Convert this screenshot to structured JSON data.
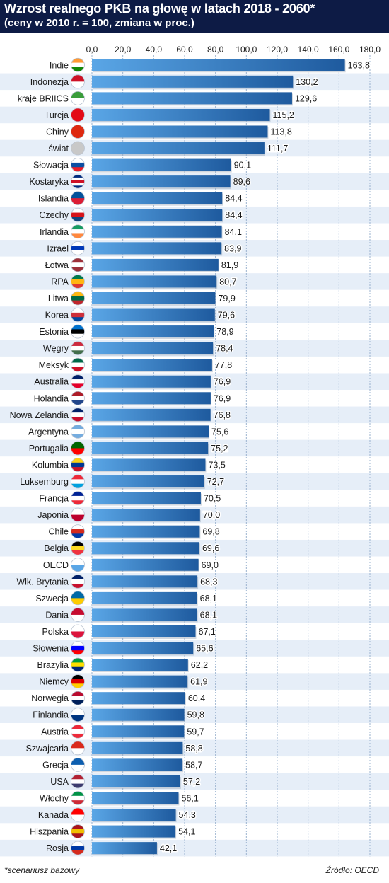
{
  "header": {
    "title": "Wzrost realnego PKB na głowę w latach 2018 - 2060*",
    "subtitle": "(ceny w 2010 r. = 100,  zmiana w proc.)"
  },
  "footer": {
    "footnote": "*scenariusz bazowy",
    "source": "Źródło: OECD"
  },
  "colors": {
    "header_bg": "#0d1b45",
    "bar_light": "#5aa6e6",
    "bar_dark": "#1e5a9e",
    "row_stripe": "#e6eef8",
    "grid": "#9bb3cf"
  },
  "chart_data": {
    "type": "bar",
    "orientation": "horizontal",
    "xlim": [
      0,
      180
    ],
    "xticks": [
      0,
      20,
      40,
      60,
      80,
      100,
      120,
      140,
      160,
      180
    ],
    "xtick_labels": [
      "0,0",
      "20,0",
      "40,0",
      "60,0",
      "80,0",
      "100,0",
      "120,0",
      "140,0",
      "160,0",
      "180,0"
    ],
    "grid": true,
    "categories": [
      "Indie",
      "Indonezja",
      "kraje BRIICS",
      "Turcja",
      "Chiny",
      "świat",
      "Słowacja",
      "Kostaryka",
      "Islandia",
      "Czechy",
      "Irlandia",
      "Izrael",
      "Łotwa",
      "RPA",
      "Litwa",
      "Korea",
      "Estonia",
      "Węgry",
      "Meksyk",
      "Australia",
      "Holandia",
      "Nowa Zelandia",
      "Argentyna",
      "Portugalia",
      "Kolumbia",
      "Luksemburg",
      "Francja",
      "Japonia",
      "Chile",
      "Belgia",
      "OECD",
      "Wlk. Brytania",
      "Szwecja",
      "Dania",
      "Polska",
      "Słowenia",
      "Brazylia",
      "Niemcy",
      "Norwegia",
      "Finlandia",
      "Austria",
      "Szwajcaria",
      "Grecja",
      "USA",
      "Włochy",
      "Kanada",
      "Hiszpania",
      "Rosja"
    ],
    "values": [
      163.8,
      130.2,
      129.6,
      115.2,
      113.8,
      111.7,
      90.1,
      89.6,
      84.4,
      84.4,
      84.1,
      83.9,
      81.9,
      80.7,
      79.9,
      79.6,
      78.9,
      78.4,
      77.8,
      76.9,
      76.9,
      76.8,
      75.6,
      75.2,
      73.5,
      72.7,
      70.5,
      70.0,
      69.8,
      69.6,
      69.0,
      68.3,
      68.1,
      68.1,
      67.1,
      65.6,
      62.2,
      61.9,
      60.4,
      59.8,
      59.7,
      58.8,
      58.7,
      57.2,
      56.1,
      54.3,
      54.1,
      42.1
    ],
    "value_labels": [
      "163,8",
      "130,2",
      "129,6",
      "115,2",
      "113,8",
      "111,7",
      "90,1",
      "89,6",
      "84,4",
      "84,4",
      "84,1",
      "83,9",
      "81,9",
      "80,7",
      "79,9",
      "79,6",
      "78,9",
      "78,4",
      "77,8",
      "76,9",
      "76,9",
      "76,8",
      "75,6",
      "75,2",
      "73,5",
      "72,7",
      "70,5",
      "70,0",
      "69,8",
      "69,6",
      "69,0",
      "68,3",
      "68,1",
      "68,1",
      "67,1",
      "65,6",
      "62,2",
      "61,9",
      "60,4",
      "59,8",
      "59,7",
      "58,8",
      "58,7",
      "57,2",
      "56,1",
      "54,3",
      "54,1",
      "42,1"
    ],
    "flags": [
      [
        "#ff9933",
        "#ffffff",
        "#138808"
      ],
      [
        "#ce1126",
        "#ffffff"
      ],
      [
        "#3a9d3a",
        "#ffffff"
      ],
      [
        "#e30a17"
      ],
      [
        "#de2910"
      ],
      [
        "#c8c8c8"
      ],
      [
        "#ffffff",
        "#0b4ea2",
        "#ee1c25"
      ],
      [
        "#002b7f",
        "#ffffff",
        "#ce1126",
        "#ffffff",
        "#002b7f"
      ],
      [
        "#02529c",
        "#dc1e35"
      ],
      [
        "#ffffff",
        "#d7141a",
        "#11457e"
      ],
      [
        "#169b62",
        "#ffffff",
        "#ff883e"
      ],
      [
        "#ffffff",
        "#0038b8",
        "#ffffff"
      ],
      [
        "#9e3039",
        "#ffffff",
        "#9e3039"
      ],
      [
        "#007a4d",
        "#ffb612",
        "#de3831"
      ],
      [
        "#fdb913",
        "#006a44",
        "#c1272d"
      ],
      [
        "#ffffff",
        "#cd2e3a",
        "#0047a0"
      ],
      [
        "#0072ce",
        "#000000",
        "#ffffff"
      ],
      [
        "#cd2a3e",
        "#ffffff",
        "#436f4d"
      ],
      [
        "#006847",
        "#ffffff",
        "#ce1126"
      ],
      [
        "#012169",
        "#ffffff",
        "#e4002b"
      ],
      [
        "#ae1c28",
        "#ffffff",
        "#21468b"
      ],
      [
        "#012169",
        "#ffffff",
        "#c8102e"
      ],
      [
        "#74acdf",
        "#ffffff",
        "#74acdf"
      ],
      [
        "#006600",
        "#ff0000"
      ],
      [
        "#fcd116",
        "#003893",
        "#ce1126"
      ],
      [
        "#ed2939",
        "#ffffff",
        "#00a1de"
      ],
      [
        "#002395",
        "#ffffff",
        "#ed2939"
      ],
      [
        "#ffffff",
        "#bc002d"
      ],
      [
        "#ffffff",
        "#d52b1e",
        "#0039a6"
      ],
      [
        "#000000",
        "#fdda24",
        "#ef3340"
      ],
      [
        "#ffffff",
        "#5aa6e6"
      ],
      [
        "#012169",
        "#ffffff",
        "#c8102e"
      ],
      [
        "#006aa7",
        "#fecc00"
      ],
      [
        "#c60c30",
        "#ffffff"
      ],
      [
        "#ffffff",
        "#dc143c"
      ],
      [
        "#ffffff",
        "#0000ff",
        "#ff0000"
      ],
      [
        "#009c3b",
        "#ffdf00",
        "#002776"
      ],
      [
        "#000000",
        "#dd0000",
        "#ffce00"
      ],
      [
        "#ba0c2f",
        "#ffffff",
        "#00205b"
      ],
      [
        "#ffffff",
        "#003580"
      ],
      [
        "#ed2939",
        "#ffffff",
        "#ed2939"
      ],
      [
        "#da291c",
        "#ffffff"
      ],
      [
        "#0d5eaf",
        "#ffffff"
      ],
      [
        "#b22234",
        "#ffffff",
        "#3c3b6e"
      ],
      [
        "#009246",
        "#ffffff",
        "#ce2b37"
      ],
      [
        "#ff0000",
        "#ffffff"
      ],
      [
        "#aa151b",
        "#f1bf00",
        "#aa151b"
      ],
      [
        "#ffffff",
        "#0039a6",
        "#d52b1e"
      ]
    ]
  }
}
